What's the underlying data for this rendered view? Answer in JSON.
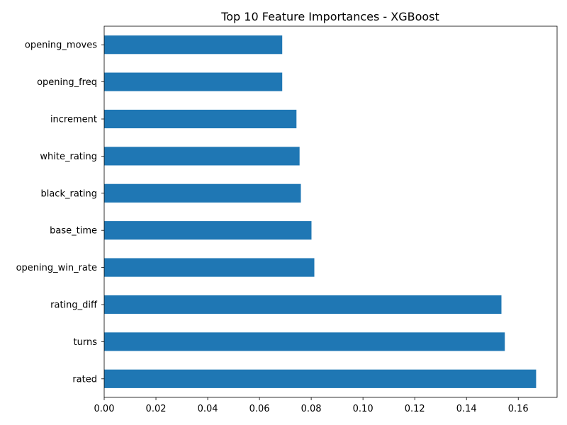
{
  "chart_data": {
    "type": "bar",
    "orientation": "horizontal",
    "title": "Top 10 Feature Importances - XGBoost",
    "xlabel": "",
    "ylabel": "",
    "categories": [
      "rated",
      "turns",
      "rating_diff",
      "opening_win_rate",
      "base_time",
      "black_rating",
      "white_rating",
      "increment",
      "opening_freq",
      "opening_moves"
    ],
    "values": [
      0.1669,
      0.1548,
      0.1535,
      0.0812,
      0.0801,
      0.076,
      0.0755,
      0.0743,
      0.0688,
      0.0688
    ],
    "xlim": [
      0,
      0.175
    ],
    "xticks": [
      "0.00",
      "0.02",
      "0.04",
      "0.06",
      "0.08",
      "0.10",
      "0.12",
      "0.14",
      "0.16"
    ],
    "grid": false,
    "bar_color": "#1f77b4"
  }
}
